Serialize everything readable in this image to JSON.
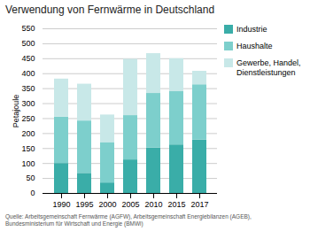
{
  "chart_data": {
    "type": "bar",
    "stacked": true,
    "title": "Verwendung von Fernwärme in Deutschland",
    "ylabel": "Petajoule",
    "source": "Quelle: Arbeitsgemeinschaft Fernwärme (AGFW), Arbeitsgemeinschaft Energiebilanzen (AGEB),\nBundesministerium für Wirtschaft und Energie (BMWi)",
    "categories": [
      "1990",
      "1995",
      "2000",
      "2005",
      "2010",
      "2015",
      "2017"
    ],
    "series": [
      {
        "name": "Industrie",
        "color": "#3aada8",
        "values": [
          100,
          67,
          35,
          112,
          152,
          162,
          178
        ]
      },
      {
        "name": "Haushalte",
        "color": "#7dcfcc",
        "values": [
          155,
          175,
          135,
          148,
          182,
          178,
          185
        ]
      },
      {
        "name": "Gewerbe, Handel,\nDienstleistungen",
        "color": "#c8e8e8",
        "values": [
          127,
          123,
          92,
          188,
          133,
          110,
          45
        ]
      }
    ],
    "ylim": [
      0,
      550
    ],
    "yticks": [
      0,
      50,
      100,
      150,
      200,
      250,
      300,
      350,
      400,
      450,
      500,
      550
    ],
    "grid": true,
    "legend": "right"
  }
}
